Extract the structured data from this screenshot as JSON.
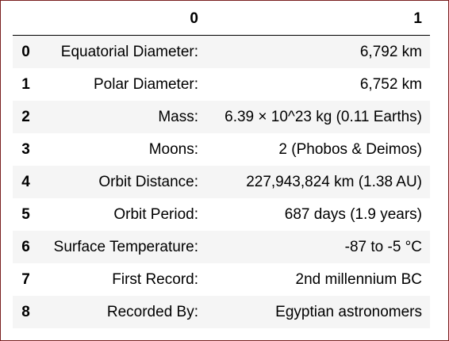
{
  "table": {
    "index_header": "",
    "columns": [
      "0",
      "1"
    ],
    "rows": [
      {
        "index": "0",
        "label": "Equatorial Diameter:",
        "value": "6,792 km"
      },
      {
        "index": "1",
        "label": "Polar Diameter:",
        "value": "6,752 km"
      },
      {
        "index": "2",
        "label": "Mass:",
        "value": "6.39 × 10^23 kg (0.11 Earths)"
      },
      {
        "index": "3",
        "label": "Moons:",
        "value": "2 (Phobos & Deimos)"
      },
      {
        "index": "4",
        "label": "Orbit Distance:",
        "value": "227,943,824 km (1.38 AU)"
      },
      {
        "index": "5",
        "label": "Orbit Period:",
        "value": "687 days (1.9 years)"
      },
      {
        "index": "6",
        "label": "Surface Temperature:",
        "value": "-87 to -5 °C"
      },
      {
        "index": "7",
        "label": "First Record:",
        "value": "2nd millennium BC"
      },
      {
        "index": "8",
        "label": "Recorded By:",
        "value": "Egyptian astronomers"
      }
    ]
  },
  "colors": {
    "border": "#7a1f1f",
    "row_stripe": "#f5f5f5",
    "text": "#000000"
  }
}
